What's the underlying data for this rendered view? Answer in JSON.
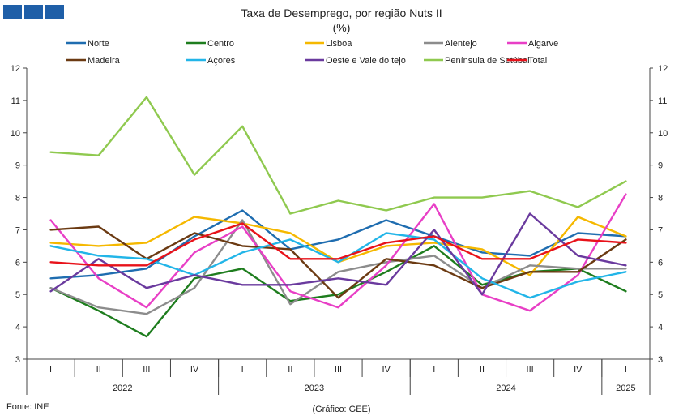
{
  "chart_data": {
    "type": "line",
    "title": "Taxa de Desemprego, por região Nuts II",
    "subtitle": "(%)",
    "ylim": [
      3,
      12
    ],
    "yticks": [
      3,
      4,
      5,
      6,
      7,
      8,
      9,
      10,
      11,
      12
    ],
    "grid": false,
    "legend_position": "top",
    "quarters": [
      "I",
      "II",
      "III",
      "IV",
      "I",
      "II",
      "III",
      "IV",
      "I",
      "II",
      "III",
      "IV",
      "I"
    ],
    "years": [
      {
        "label": "2022",
        "span": 4
      },
      {
        "label": "2023",
        "span": 4
      },
      {
        "label": "2024",
        "span": 4
      },
      {
        "label": "2025",
        "span": 1
      }
    ],
    "series": [
      {
        "name": "Norte",
        "color": "#1f6db0",
        "values": [
          5.5,
          5.6,
          5.8,
          6.8,
          7.6,
          6.4,
          6.7,
          7.3,
          6.8,
          6.3,
          6.2,
          6.9,
          6.8
        ]
      },
      {
        "name": "Centro",
        "color": "#1e7d1e",
        "values": [
          5.2,
          4.5,
          3.7,
          5.5,
          5.8,
          4.8,
          5.0,
          5.7,
          6.5,
          5.3,
          5.7,
          5.8,
          5.1
        ]
      },
      {
        "name": "Lisboa",
        "color": "#f5b800",
        "values": [
          6.6,
          6.5,
          6.6,
          7.4,
          7.2,
          6.9,
          6.0,
          6.5,
          6.6,
          6.4,
          5.6,
          7.4,
          6.8
        ]
      },
      {
        "name": "Alentejo",
        "color": "#8c8c8c",
        "values": [
          5.2,
          4.6,
          4.4,
          5.2,
          7.3,
          4.7,
          5.7,
          6.0,
          6.2,
          5.2,
          5.9,
          5.8,
          5.8
        ]
      },
      {
        "name": "Algarve",
        "color": "#e83fc6",
        "values": [
          7.3,
          5.5,
          4.6,
          6.3,
          7.1,
          5.1,
          4.6,
          5.9,
          7.8,
          5.0,
          4.5,
          5.6,
          8.1
        ]
      },
      {
        "name": "Madeira",
        "color": "#6b3a12",
        "values": [
          7.0,
          7.1,
          6.1,
          6.9,
          6.5,
          6.4,
          4.9,
          6.1,
          5.9,
          5.2,
          5.7,
          5.7,
          6.7
        ]
      },
      {
        "name": "Açores",
        "color": "#22b5e8",
        "values": [
          6.5,
          6.2,
          6.1,
          5.6,
          6.3,
          6.7,
          6.0,
          6.9,
          6.7,
          5.5,
          4.9,
          5.4,
          5.7
        ]
      },
      {
        "name": "Oeste e Vale do tejo",
        "color": "#6a3a9e",
        "values": [
          5.1,
          6.1,
          5.2,
          5.6,
          5.3,
          5.3,
          5.5,
          5.3,
          7.0,
          5.0,
          7.5,
          6.2,
          5.9
        ]
      },
      {
        "name": "Península de Setúbal",
        "color": "#8fc94f",
        "values": [
          9.4,
          9.3,
          11.1,
          8.7,
          10.2,
          7.5,
          7.9,
          7.6,
          8.0,
          8.0,
          8.2,
          7.7,
          8.5
        ]
      },
      {
        "name": "Total",
        "color": "#e8121a",
        "values": [
          6.0,
          5.9,
          5.9,
          6.7,
          7.2,
          6.1,
          6.1,
          6.6,
          6.8,
          6.1,
          6.1,
          6.7,
          6.6
        ]
      }
    ]
  },
  "footer": {
    "source": "Fonte: INE",
    "credit": "(Gráfico: GEE)"
  },
  "logo": {
    "color": "#1f5fa8"
  }
}
